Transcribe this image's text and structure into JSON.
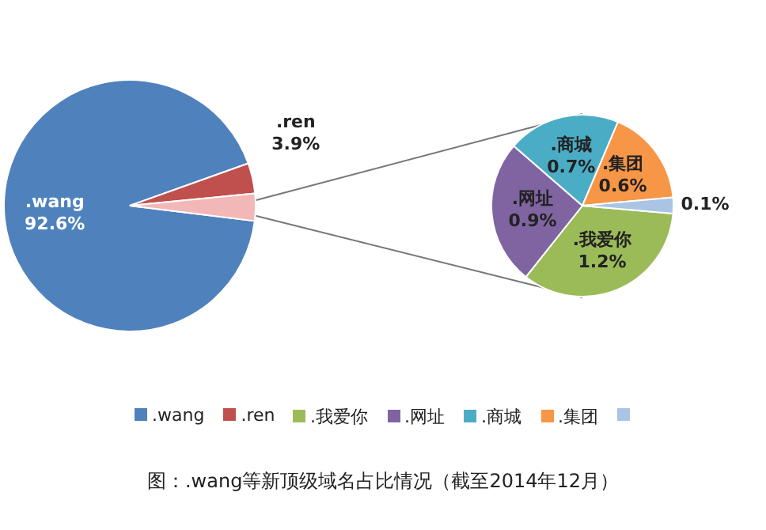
{
  "chart_data": [
    {
      "type": "pie",
      "categories": [
        ".wang",
        ".ren",
        null
      ],
      "values": [
        92.6,
        3.9,
        3.5
      ],
      "colors": [
        "#4f81bd",
        "#c0504d",
        "#f2b8b7"
      ],
      "value_labels": [
        "92.6%",
        "3.9%",
        null
      ],
      "legend": "bottom",
      "annotations": [
        "图：.wang等新顶级域名占比情况（截至2014年12月）"
      ]
    },
    {
      "type": "pie",
      "categories": [
        ".我爱你",
        ".网址",
        ".商城",
        ".集团",
        null
      ],
      "values": [
        1.2,
        0.9,
        0.7,
        0.6,
        0.1
      ],
      "colors": [
        "#9bbb59",
        "#8064a2",
        "#4bacc6",
        "#f79646",
        "#a9c4e4"
      ],
      "value_labels": [
        "1.2%",
        "0.9%",
        "0.7%",
        "0.6%",
        "0.1%"
      ],
      "legend": "bottom"
    }
  ]
}
